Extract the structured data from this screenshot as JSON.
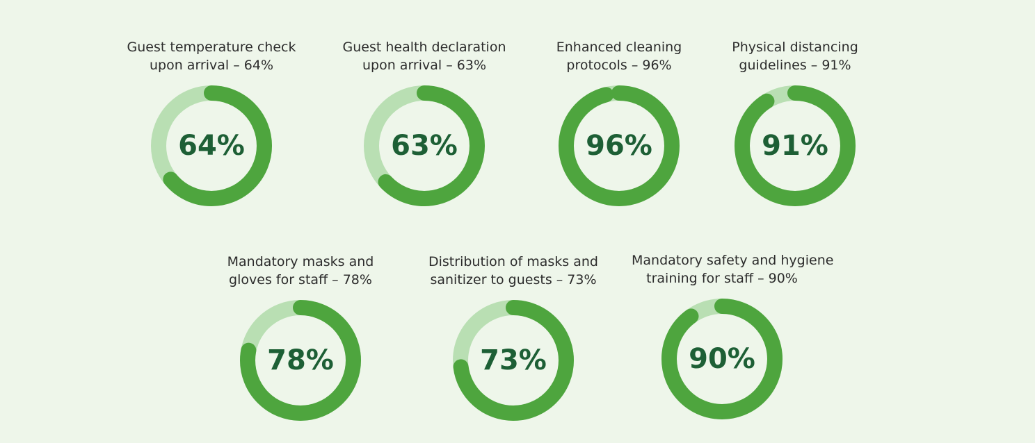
{
  "chart_data": {
    "type": "donut",
    "colors": {
      "fill": "#4ea53e",
      "track": "#b9dfb3",
      "value_text": "#1d5f35",
      "label_text": "#2c2c2c"
    },
    "items": [
      {
        "label_line1": "Guest temperature check",
        "label_line2": "upon arrival – 64%",
        "value": 64,
        "value_label": "64%"
      },
      {
        "label_line1": "Guest health declaration",
        "label_line2": "upon arrival – 63%",
        "value": 63,
        "value_label": "63%"
      },
      {
        "label_line1": "Enhanced cleaning",
        "label_line2": "protocols – 96%",
        "value": 96,
        "value_label": "96%"
      },
      {
        "label_line1": "Physical distancing",
        "label_line2": "guidelines – 91%",
        "value": 91,
        "value_label": "91%"
      },
      {
        "label_line1": "Mandatory masks and",
        "label_line2": "gloves for staff – 78%",
        "value": 78,
        "value_label": "78%"
      },
      {
        "label_line1": "Distribution of masks and",
        "label_line2": "sanitizer to guests – 73%",
        "value": 73,
        "value_label": "73%"
      },
      {
        "label_line1": "Mandatory safety and hygiene",
        "label_line2": "training for staff – 90%",
        "value": 90,
        "value_label": "90%"
      }
    ]
  }
}
